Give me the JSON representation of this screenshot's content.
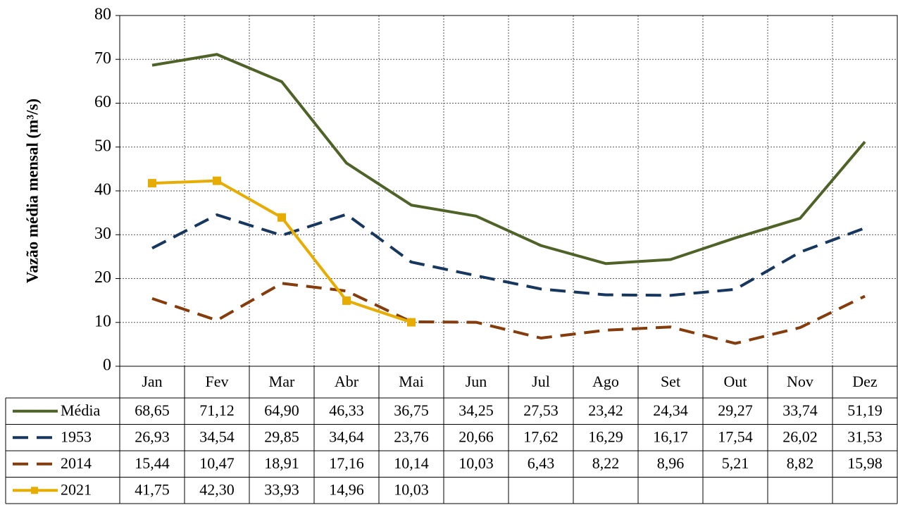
{
  "chart_data": {
    "type": "line",
    "y_label": "Vazão média mensal (m³/s)",
    "categories": [
      "Jan",
      "Fev",
      "Mar",
      "Abr",
      "Mai",
      "Jun",
      "Jul",
      "Ago",
      "Set",
      "Out",
      "Nov",
      "Dez"
    ],
    "ylim": [
      0,
      80
    ],
    "yticks": [
      0,
      10,
      20,
      30,
      40,
      50,
      60,
      70,
      80
    ],
    "grid": true,
    "series": [
      {
        "name": "Média",
        "color": "#4f6228",
        "line_style": "solid",
        "marker": "none",
        "values": [
          68.65,
          71.12,
          64.9,
          46.33,
          36.75,
          34.25,
          27.53,
          23.42,
          24.34,
          29.27,
          33.74,
          51.19
        ],
        "value_labels": [
          "68,65",
          "71,12",
          "64,90",
          "46,33",
          "36,75",
          "34,25",
          "27,53",
          "23,42",
          "24,34",
          "29,27",
          "33,74",
          "51,19"
        ]
      },
      {
        "name": "1953",
        "color": "#17375e",
        "line_style": "dashed",
        "marker": "none",
        "values": [
          26.93,
          34.54,
          29.85,
          34.64,
          23.76,
          20.66,
          17.62,
          16.29,
          16.17,
          17.54,
          26.02,
          31.53
        ],
        "value_labels": [
          "26,93",
          "34,54",
          "29,85",
          "34,64",
          "23,76",
          "20,66",
          "17,62",
          "16,29",
          "16,17",
          "17,54",
          "26,02",
          "31,53"
        ]
      },
      {
        "name": "2014",
        "color": "#843c0c",
        "line_style": "dashed",
        "marker": "none",
        "values": [
          15.44,
          10.47,
          18.91,
          17.16,
          10.14,
          10.03,
          6.43,
          8.22,
          8.96,
          5.21,
          8.82,
          15.98
        ],
        "value_labels": [
          "15,44",
          "10,47",
          "18,91",
          "17,16",
          "10,14",
          "10,03",
          "6,43",
          "8,22",
          "8,96",
          "5,21",
          "8,82",
          "15,98"
        ]
      },
      {
        "name": "2021",
        "color": "#e6ac00",
        "line_style": "solid",
        "marker": "square",
        "values": [
          41.75,
          42.3,
          33.93,
          14.96,
          10.03,
          null,
          null,
          null,
          null,
          null,
          null,
          null
        ],
        "value_labels": [
          "41,75",
          "42,30",
          "33,93",
          "14,96",
          "10,03",
          null,
          null,
          null,
          null,
          null,
          null,
          null
        ]
      }
    ]
  }
}
